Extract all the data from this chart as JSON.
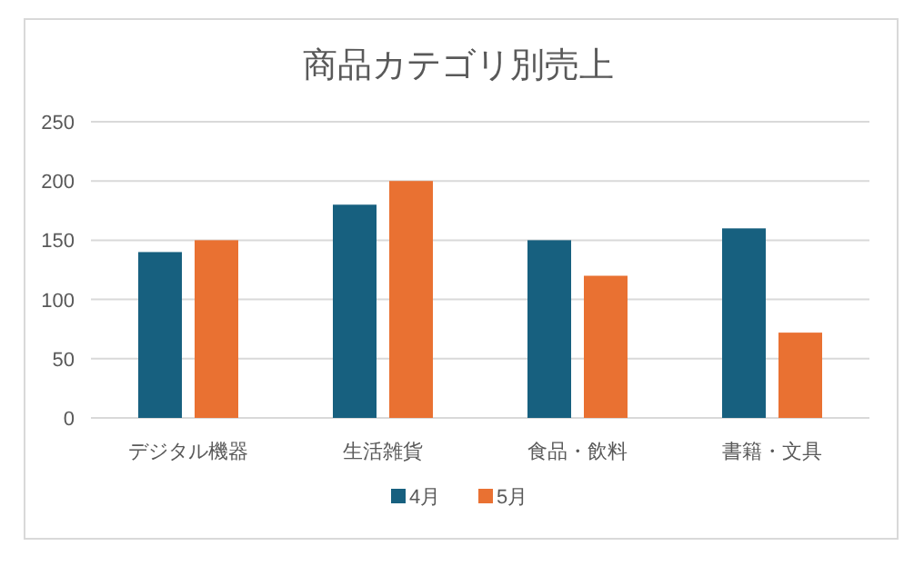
{
  "chart_data": {
    "type": "bar",
    "title": "商品カテゴリ別売上",
    "categories": [
      "デジタル機器",
      "生活雑貨",
      "食品・飲料",
      "書籍・文具"
    ],
    "series": [
      {
        "name": "4月",
        "color": "#17607f",
        "values": [
          140,
          180,
          150,
          160
        ]
      },
      {
        "name": "5月",
        "color": "#e97132",
        "values": [
          150,
          200,
          120,
          72
        ]
      }
    ],
    "ylim": [
      0,
      250
    ],
    "yticks": [
      0,
      50,
      100,
      150,
      200,
      250
    ],
    "grid": "y",
    "legend": "bottom"
  }
}
